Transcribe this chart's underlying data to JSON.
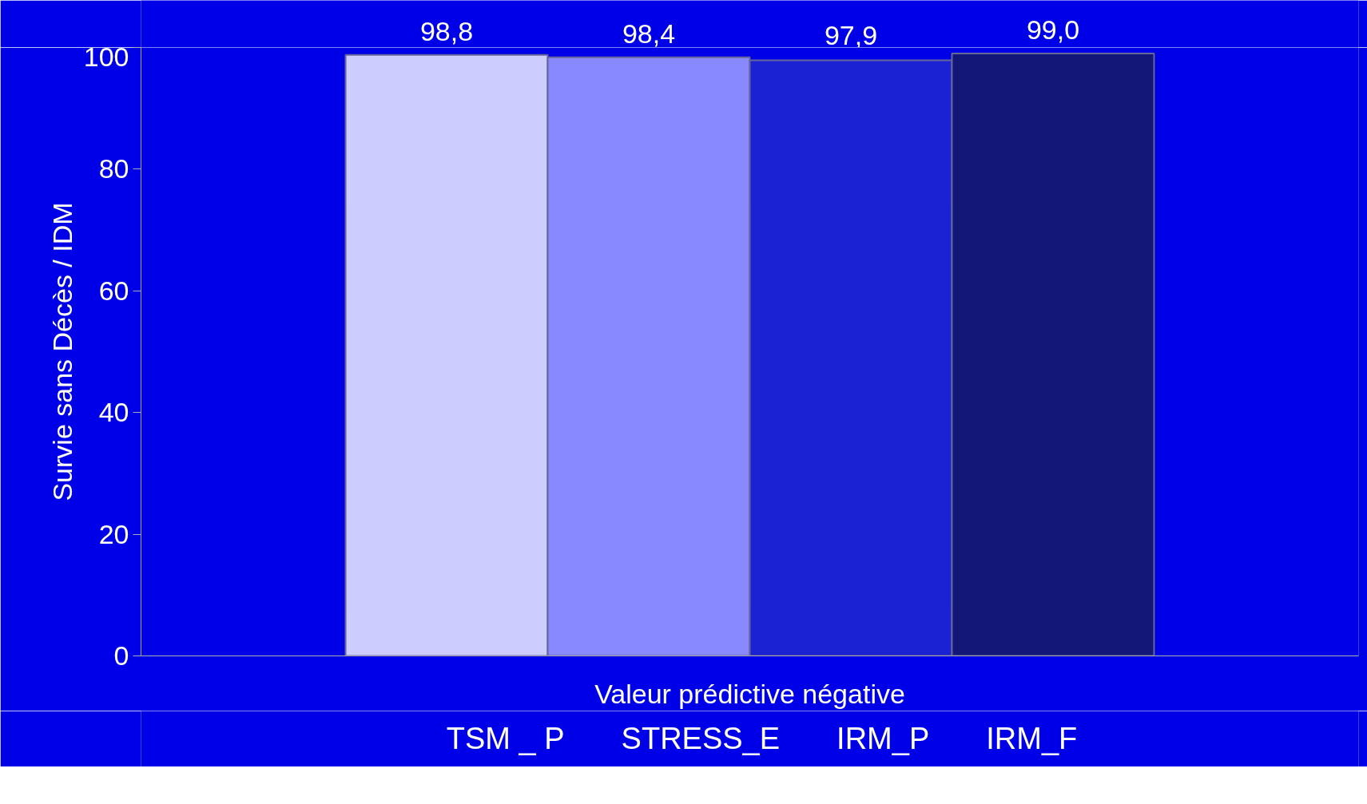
{
  "chart_data": {
    "type": "bar",
    "ylabel": "Survie sans Décès / IDM",
    "categories": [
      "Valeur prédictive négative"
    ],
    "series": [
      {
        "name": "TSM _ P",
        "color": "#ccccff",
        "values": [
          98.8
        ],
        "value_labels": [
          "98,8"
        ]
      },
      {
        "name": "STRESS_E",
        "color": "#8888ff",
        "values": [
          98.4
        ],
        "value_labels": [
          "98,4"
        ]
      },
      {
        "name": "IRM_P",
        "color": "#1a22d4",
        "values": [
          97.9
        ],
        "value_labels": [
          "97,9"
        ]
      },
      {
        "name": "IRM_F",
        "color": "#131878",
        "values": [
          99.0
        ],
        "value_labels": [
          "99,0"
        ]
      }
    ],
    "ylim": [
      0,
      100
    ],
    "yticks": [
      0,
      20,
      40,
      60,
      80,
      100
    ],
    "grid": false,
    "legend": "bottom"
  }
}
